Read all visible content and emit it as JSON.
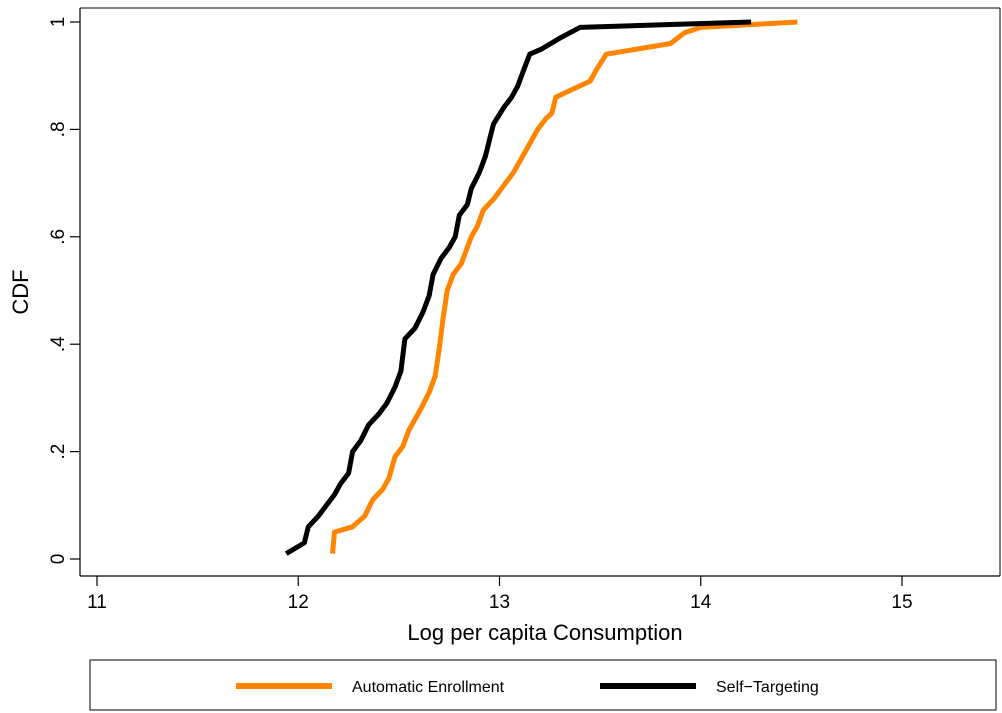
{
  "chart_data": {
    "type": "line",
    "title": "",
    "xlabel": "Log per capita Consumption",
    "ylabel": "CDF",
    "xlim": [
      11,
      15.5
    ],
    "ylim": [
      0,
      1
    ],
    "xticks": [
      {
        "value": 11,
        "label": "11"
      },
      {
        "value": 12,
        "label": "12"
      },
      {
        "value": 13,
        "label": "13"
      },
      {
        "value": 14,
        "label": "14"
      },
      {
        "value": 15,
        "label": "15"
      }
    ],
    "yticks": [
      {
        "value": 0,
        "label": "0"
      },
      {
        "value": 0.2,
        "label": ".2"
      },
      {
        "value": 0.4,
        "label": ".4"
      },
      {
        "value": 0.6,
        "label": ".6"
      },
      {
        "value": 0.8,
        "label": ".8"
      },
      {
        "value": 1,
        "label": "1"
      }
    ],
    "grid": false,
    "legend_position": "bottom",
    "series": [
      {
        "name": "Automatic Enrollment",
        "color": "#ff8400",
        "points": [
          [
            12.17,
            0.01
          ],
          [
            12.18,
            0.05
          ],
          [
            12.27,
            0.06
          ],
          [
            12.33,
            0.08
          ],
          [
            12.37,
            0.11
          ],
          [
            12.42,
            0.13
          ],
          [
            12.45,
            0.15
          ],
          [
            12.48,
            0.19
          ],
          [
            12.52,
            0.21
          ],
          [
            12.55,
            0.24
          ],
          [
            12.61,
            0.28
          ],
          [
            12.65,
            0.31
          ],
          [
            12.68,
            0.34
          ],
          [
            12.7,
            0.39
          ],
          [
            12.72,
            0.45
          ],
          [
            12.74,
            0.5
          ],
          [
            12.77,
            0.53
          ],
          [
            12.81,
            0.55
          ],
          [
            12.83,
            0.57
          ],
          [
            12.86,
            0.6
          ],
          [
            12.89,
            0.62
          ],
          [
            12.92,
            0.65
          ],
          [
            12.97,
            0.67
          ],
          [
            13.03,
            0.7
          ],
          [
            13.07,
            0.72
          ],
          [
            13.1,
            0.74
          ],
          [
            13.13,
            0.76
          ],
          [
            13.16,
            0.78
          ],
          [
            13.19,
            0.8
          ],
          [
            13.23,
            0.82
          ],
          [
            13.26,
            0.83
          ],
          [
            13.28,
            0.86
          ],
          [
            13.45,
            0.89
          ],
          [
            13.48,
            0.91
          ],
          [
            13.53,
            0.94
          ],
          [
            13.85,
            0.96
          ],
          [
            13.92,
            0.98
          ],
          [
            14.0,
            0.99
          ],
          [
            14.48,
            1.0
          ]
        ]
      },
      {
        "name": "Self−Targeting",
        "color": "#000000",
        "points": [
          [
            11.94,
            0.01
          ],
          [
            12.03,
            0.03
          ],
          [
            12.05,
            0.06
          ],
          [
            12.1,
            0.08
          ],
          [
            12.14,
            0.1
          ],
          [
            12.18,
            0.12
          ],
          [
            12.21,
            0.14
          ],
          [
            12.25,
            0.16
          ],
          [
            12.27,
            0.2
          ],
          [
            12.31,
            0.22
          ],
          [
            12.35,
            0.25
          ],
          [
            12.4,
            0.27
          ],
          [
            12.44,
            0.29
          ],
          [
            12.48,
            0.32
          ],
          [
            12.51,
            0.35
          ],
          [
            12.53,
            0.41
          ],
          [
            12.58,
            0.43
          ],
          [
            12.62,
            0.46
          ],
          [
            12.65,
            0.49
          ],
          [
            12.67,
            0.53
          ],
          [
            12.71,
            0.56
          ],
          [
            12.75,
            0.58
          ],
          [
            12.78,
            0.6
          ],
          [
            12.8,
            0.64
          ],
          [
            12.84,
            0.66
          ],
          [
            12.86,
            0.69
          ],
          [
            12.9,
            0.72
          ],
          [
            12.93,
            0.75
          ],
          [
            12.95,
            0.78
          ],
          [
            12.97,
            0.81
          ],
          [
            13.02,
            0.84
          ],
          [
            13.06,
            0.86
          ],
          [
            13.09,
            0.88
          ],
          [
            13.12,
            0.91
          ],
          [
            13.15,
            0.94
          ],
          [
            13.21,
            0.95
          ],
          [
            13.3,
            0.97
          ],
          [
            13.4,
            0.99
          ],
          [
            14.25,
            1.0
          ]
        ]
      }
    ]
  }
}
